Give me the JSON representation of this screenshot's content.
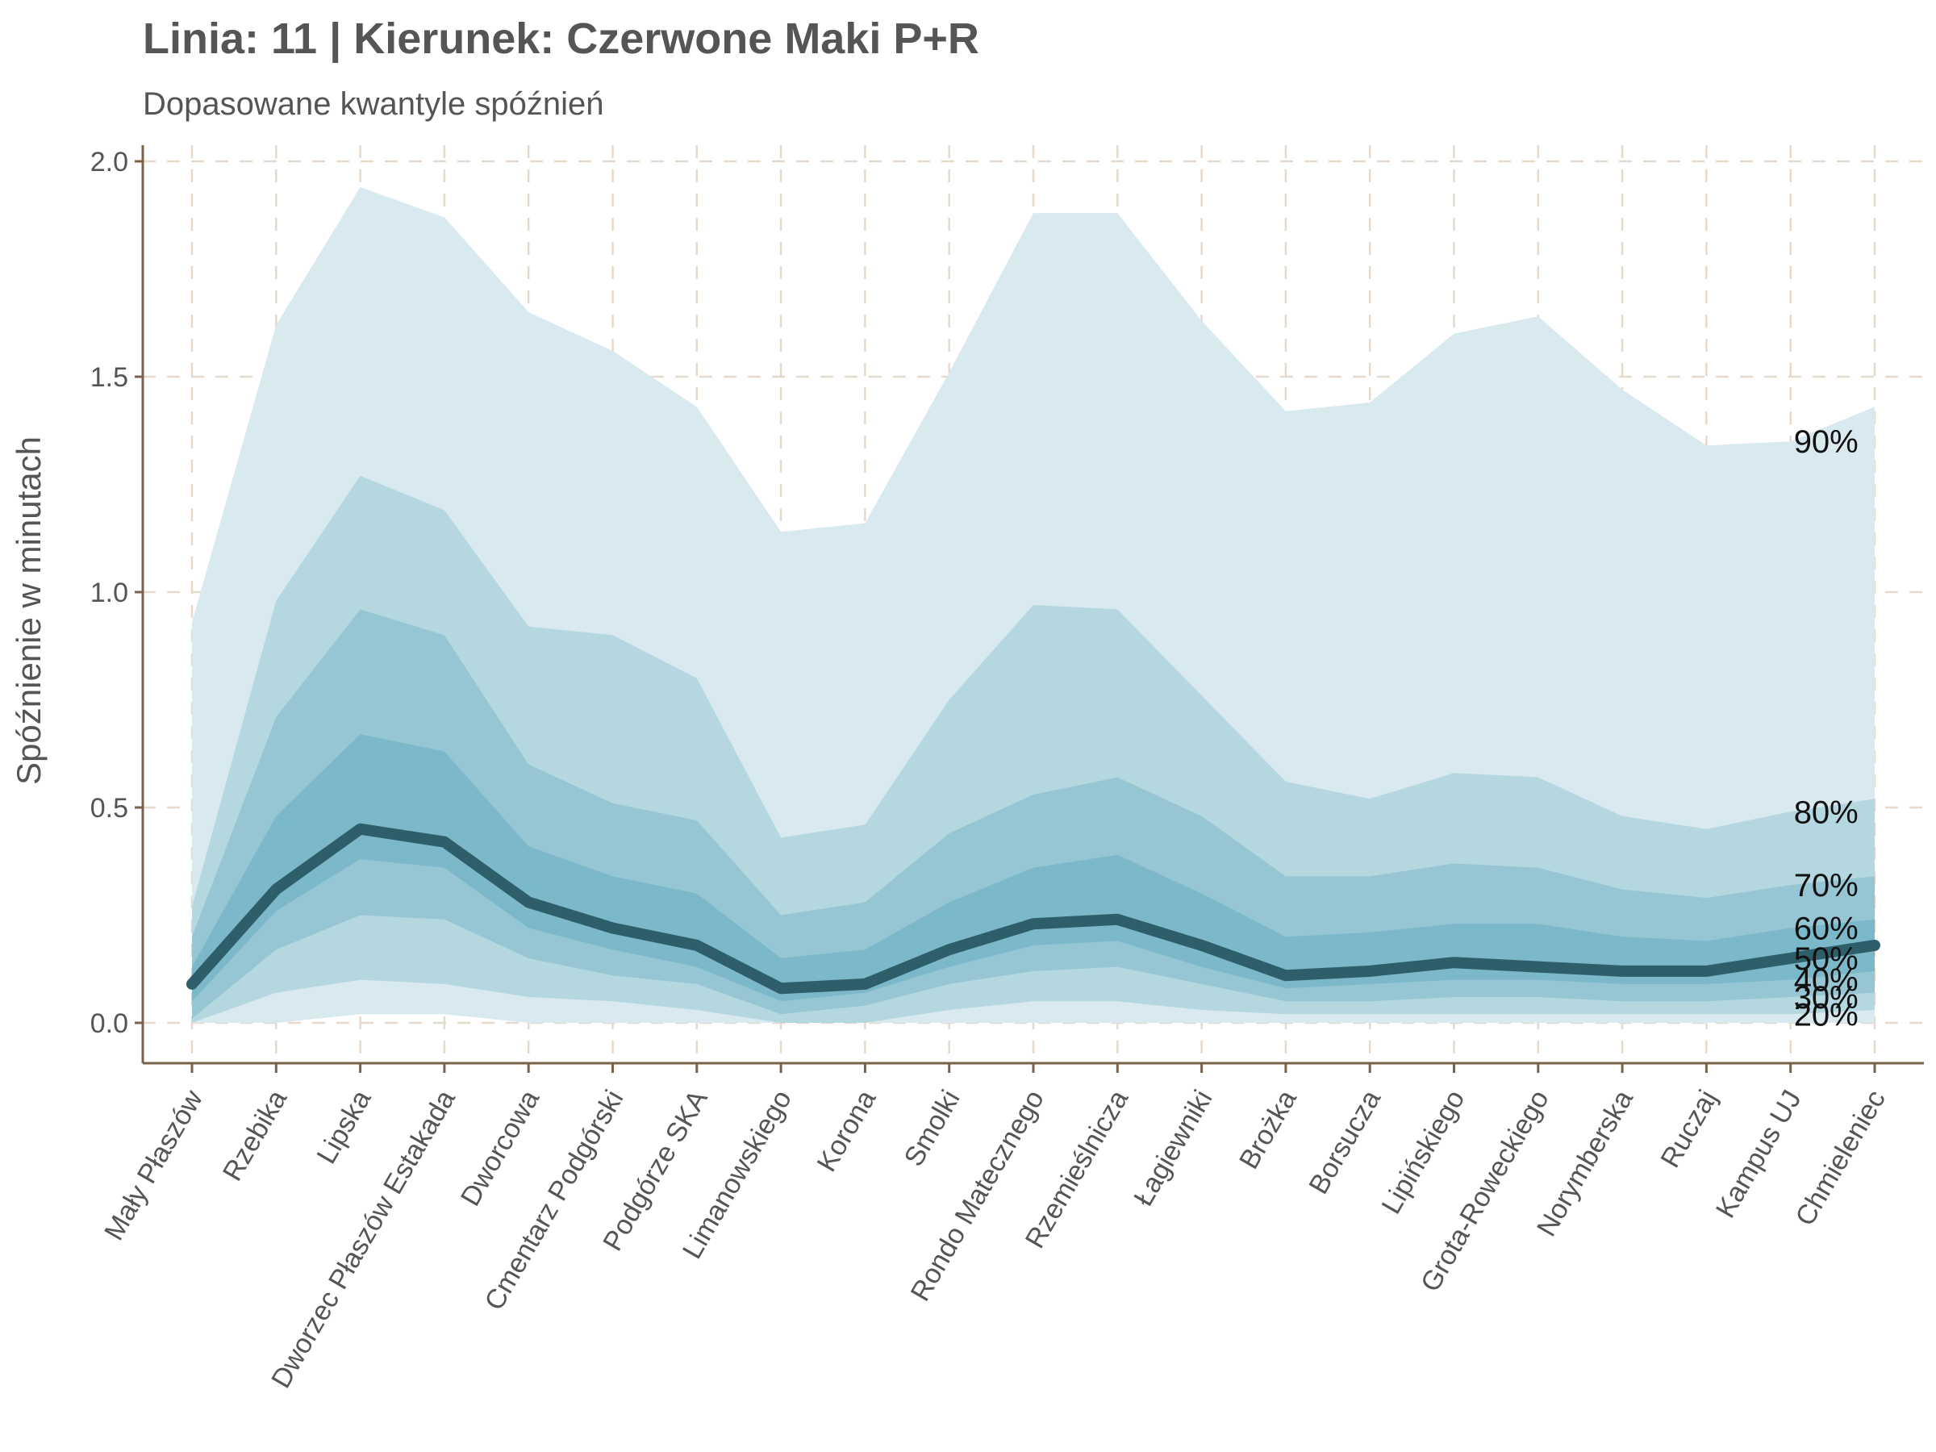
{
  "chart_data": {
    "type": "area",
    "title": "Linia: 11 | Kierunek: Czerwone Maki P+R",
    "subtitle": "Dopasowane kwantyle spóźnień",
    "xlabel": "",
    "ylabel": "Spóźnienie w minutach",
    "ylim": [
      -0.1,
      2.03
    ],
    "yticks": [
      "0.0",
      "0.5",
      "1.0",
      "1.5",
      "2.0"
    ],
    "grid": true,
    "categories": [
      "Mały Płaszów",
      "Rzebika",
      "Lipska",
      "Dworzec Płaszów Estakada",
      "Dworcowa",
      "Cmentarz Podgórski",
      "Podgórze SKA",
      "Limanowskiego",
      "Korona",
      "Smolki",
      "Rondo Matecznego",
      "Rzemieślnicza",
      "Łagiewniki",
      "Brożka",
      "Borsucza",
      "Lipińskiego",
      "Grota-Roweckiego",
      "Norymberska",
      "Ruczaj",
      "Kampus UJ",
      "Chmieleniec"
    ],
    "quantile_labels": [
      "90%",
      "80%",
      "70%",
      "60%",
      "50%",
      "40%",
      "30%",
      "20%"
    ],
    "colors": {
      "band_outer": "#d8e9ef",
      "band_2": "#b5d7e0",
      "band_3": "#96c6d3",
      "band_4": "#7bb8ca",
      "median_line": "#2e5e69",
      "grid": "#e6d9cc",
      "axis": "#7a624a"
    },
    "series": [
      {
        "quantile": 0.1,
        "values": [
          0.0,
          0.0,
          0.02,
          0.02,
          0.0,
          0.0,
          0.0,
          0.0,
          0.0,
          0.0,
          0.0,
          0.0,
          0.0,
          0.0,
          0.0,
          0.0,
          0.0,
          0.0,
          0.0,
          0.0,
          0.0
        ]
      },
      {
        "quantile": 0.2,
        "values": [
          0.0,
          0.07,
          0.1,
          0.09,
          0.06,
          0.05,
          0.03,
          0.0,
          0.0,
          0.03,
          0.05,
          0.05,
          0.03,
          0.02,
          0.02,
          0.02,
          0.02,
          0.02,
          0.02,
          0.02,
          0.03
        ]
      },
      {
        "quantile": 0.3,
        "values": [
          0.01,
          0.17,
          0.25,
          0.24,
          0.15,
          0.11,
          0.09,
          0.02,
          0.04,
          0.09,
          0.12,
          0.13,
          0.09,
          0.05,
          0.05,
          0.06,
          0.06,
          0.05,
          0.05,
          0.06,
          0.07
        ]
      },
      {
        "quantile": 0.4,
        "values": [
          0.05,
          0.26,
          0.38,
          0.36,
          0.22,
          0.17,
          0.13,
          0.05,
          0.07,
          0.13,
          0.18,
          0.19,
          0.13,
          0.08,
          0.09,
          0.1,
          0.1,
          0.09,
          0.09,
          0.1,
          0.12
        ]
      },
      {
        "quantile": 0.5,
        "values": [
          0.09,
          0.31,
          0.45,
          0.42,
          0.28,
          0.22,
          0.18,
          0.08,
          0.09,
          0.17,
          0.23,
          0.24,
          0.18,
          0.11,
          0.12,
          0.14,
          0.13,
          0.12,
          0.12,
          0.15,
          0.18
        ]
      },
      {
        "quantile": 0.6,
        "values": [
          0.13,
          0.48,
          0.67,
          0.63,
          0.41,
          0.34,
          0.3,
          0.15,
          0.17,
          0.28,
          0.36,
          0.39,
          0.3,
          0.2,
          0.21,
          0.23,
          0.23,
          0.2,
          0.19,
          0.22,
          0.24
        ]
      },
      {
        "quantile": 0.7,
        "values": [
          0.2,
          0.71,
          0.96,
          0.9,
          0.6,
          0.51,
          0.47,
          0.25,
          0.28,
          0.44,
          0.53,
          0.57,
          0.48,
          0.34,
          0.34,
          0.37,
          0.36,
          0.31,
          0.29,
          0.32,
          0.34
        ]
      },
      {
        "quantile": 0.8,
        "values": [
          0.27,
          0.98,
          1.27,
          1.19,
          0.92,
          0.9,
          0.8,
          0.43,
          0.46,
          0.75,
          0.97,
          0.96,
          0.76,
          0.56,
          0.52,
          0.58,
          0.57,
          0.48,
          0.45,
          0.49,
          0.52
        ]
      },
      {
        "quantile": 0.9,
        "values": [
          0.93,
          1.62,
          1.94,
          1.87,
          1.65,
          1.56,
          1.43,
          1.14,
          1.16,
          1.51,
          1.88,
          1.88,
          1.63,
          1.42,
          1.44,
          1.6,
          1.64,
          1.47,
          1.34,
          1.35,
          1.43
        ]
      }
    ]
  }
}
